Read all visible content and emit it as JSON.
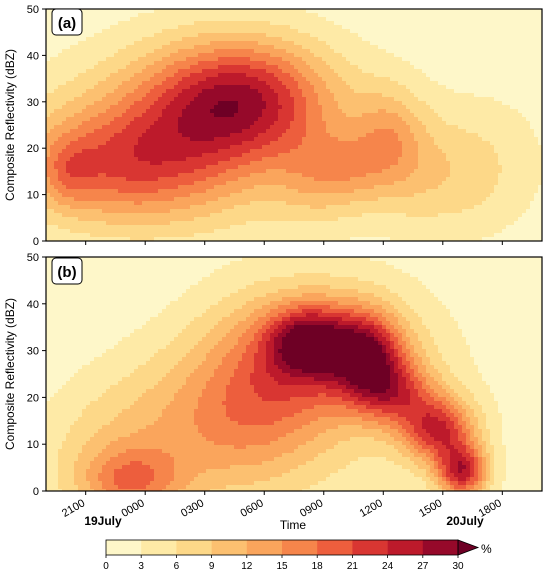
{
  "chart_data": {
    "type": "heatmap",
    "colorbar": {
      "levels": [
        0,
        3,
        6,
        9,
        12,
        15,
        18,
        21,
        24,
        27,
        30
      ],
      "tick_labels": [
        "0",
        "3",
        "6",
        "9",
        "12",
        "15",
        "18",
        "21",
        "24",
        "27",
        "30"
      ],
      "unit": "%",
      "extend": "max",
      "colors": [
        "#fef7c9",
        "#feeaa6",
        "#fdd888",
        "#fcc070",
        "#faa55c",
        "#f6854b",
        "#ed5e3d",
        "#d93632",
        "#bd1a2b",
        "#96092a",
        "#6e0025"
      ]
    },
    "x_axis": {
      "label": "Time",
      "ticks": [
        "2100",
        "0000",
        "0300",
        "0600",
        "0900",
        "1200",
        "1500",
        "1800"
      ],
      "hours_from_1900_18July": [
        2,
        5,
        8,
        11,
        14,
        17,
        20,
        23
      ],
      "range_hours": [
        0,
        25
      ],
      "dates": [
        {
          "text": "19July",
          "at_hour": 5
        },
        {
          "text": "20July",
          "at_hour": 20
        }
      ]
    },
    "panels": [
      {
        "label": "(a)",
        "ylabel": "Composite Reflectivity (dBZ)",
        "ylim": [
          0,
          50
        ],
        "yticks": [
          0,
          10,
          20,
          30,
          40,
          50
        ],
        "blobs": [
          {
            "t": 9.8,
            "z": 31,
            "st": 3.2,
            "sz": 9,
            "a": 20
          },
          {
            "t": 3.5,
            "z": 16,
            "st": 3.8,
            "sz": 9,
            "a": 13.5
          },
          {
            "t": 1.2,
            "z": 15,
            "st": 0.9,
            "sz": 5,
            "a": 5
          },
          {
            "t": 13.8,
            "z": 14,
            "st": 1.6,
            "sz": 7,
            "a": 7
          },
          {
            "t": 17.3,
            "z": 22,
            "st": 1.3,
            "sz": 8,
            "a": 9
          },
          {
            "t": 15.4,
            "z": 16,
            "st": 1.2,
            "sz": 5,
            "a": 4
          },
          {
            "t": 6.5,
            "z": 23,
            "st": 4.5,
            "sz": 12,
            "a": 6
          },
          {
            "t": 19.7,
            "z": 14,
            "st": 2.5,
            "sz": 9,
            "a": 6
          },
          {
            "t": 8.5,
            "z": 22,
            "st": 5.5,
            "sz": 15,
            "a": 5
          },
          {
            "t": 22.6,
            "z": 18,
            "st": 2.5,
            "sz": 12,
            "a": 2.5
          }
        ]
      },
      {
        "label": "(b)",
        "ylabel": "Composite Reflectivity (dBZ)",
        "ylim": [
          0,
          50
        ],
        "yticks": [
          0,
          10,
          20,
          30,
          40,
          50
        ],
        "blobs": [
          {
            "t": 13.2,
            "z": 32,
            "st": 1.4,
            "sz": 5,
            "a": 17
          },
          {
            "t": 16.2,
            "z": 29,
            "st": 1.2,
            "sz": 6,
            "a": 17
          },
          {
            "t": 17.6,
            "z": 21,
            "st": 1.4,
            "sz": 5,
            "a": 14
          },
          {
            "t": 19.8,
            "z": 13,
            "st": 1.3,
            "sz": 5,
            "a": 20
          },
          {
            "t": 21.0,
            "z": 4,
            "st": 0.9,
            "sz": 4,
            "a": 22
          },
          {
            "t": 14.8,
            "z": 30,
            "st": 2.5,
            "sz": 9,
            "a": 12
          },
          {
            "t": 11.0,
            "z": 24,
            "st": 2.6,
            "sz": 13,
            "a": 11
          },
          {
            "t": 8.5,
            "z": 14,
            "st": 3.5,
            "sz": 13,
            "a": 7
          },
          {
            "t": 4.3,
            "z": 2,
            "st": 1.8,
            "sz": 5,
            "a": 11
          },
          {
            "t": 2.7,
            "z": 7,
            "st": 2.5,
            "sz": 11,
            "a": 5
          },
          {
            "t": 6.2,
            "z": 12,
            "st": 2.8,
            "sz": 12,
            "a": 3
          },
          {
            "t": 16.0,
            "z": 20,
            "st": 4.5,
            "sz": 18,
            "a": 4
          }
        ]
      }
    ]
  }
}
